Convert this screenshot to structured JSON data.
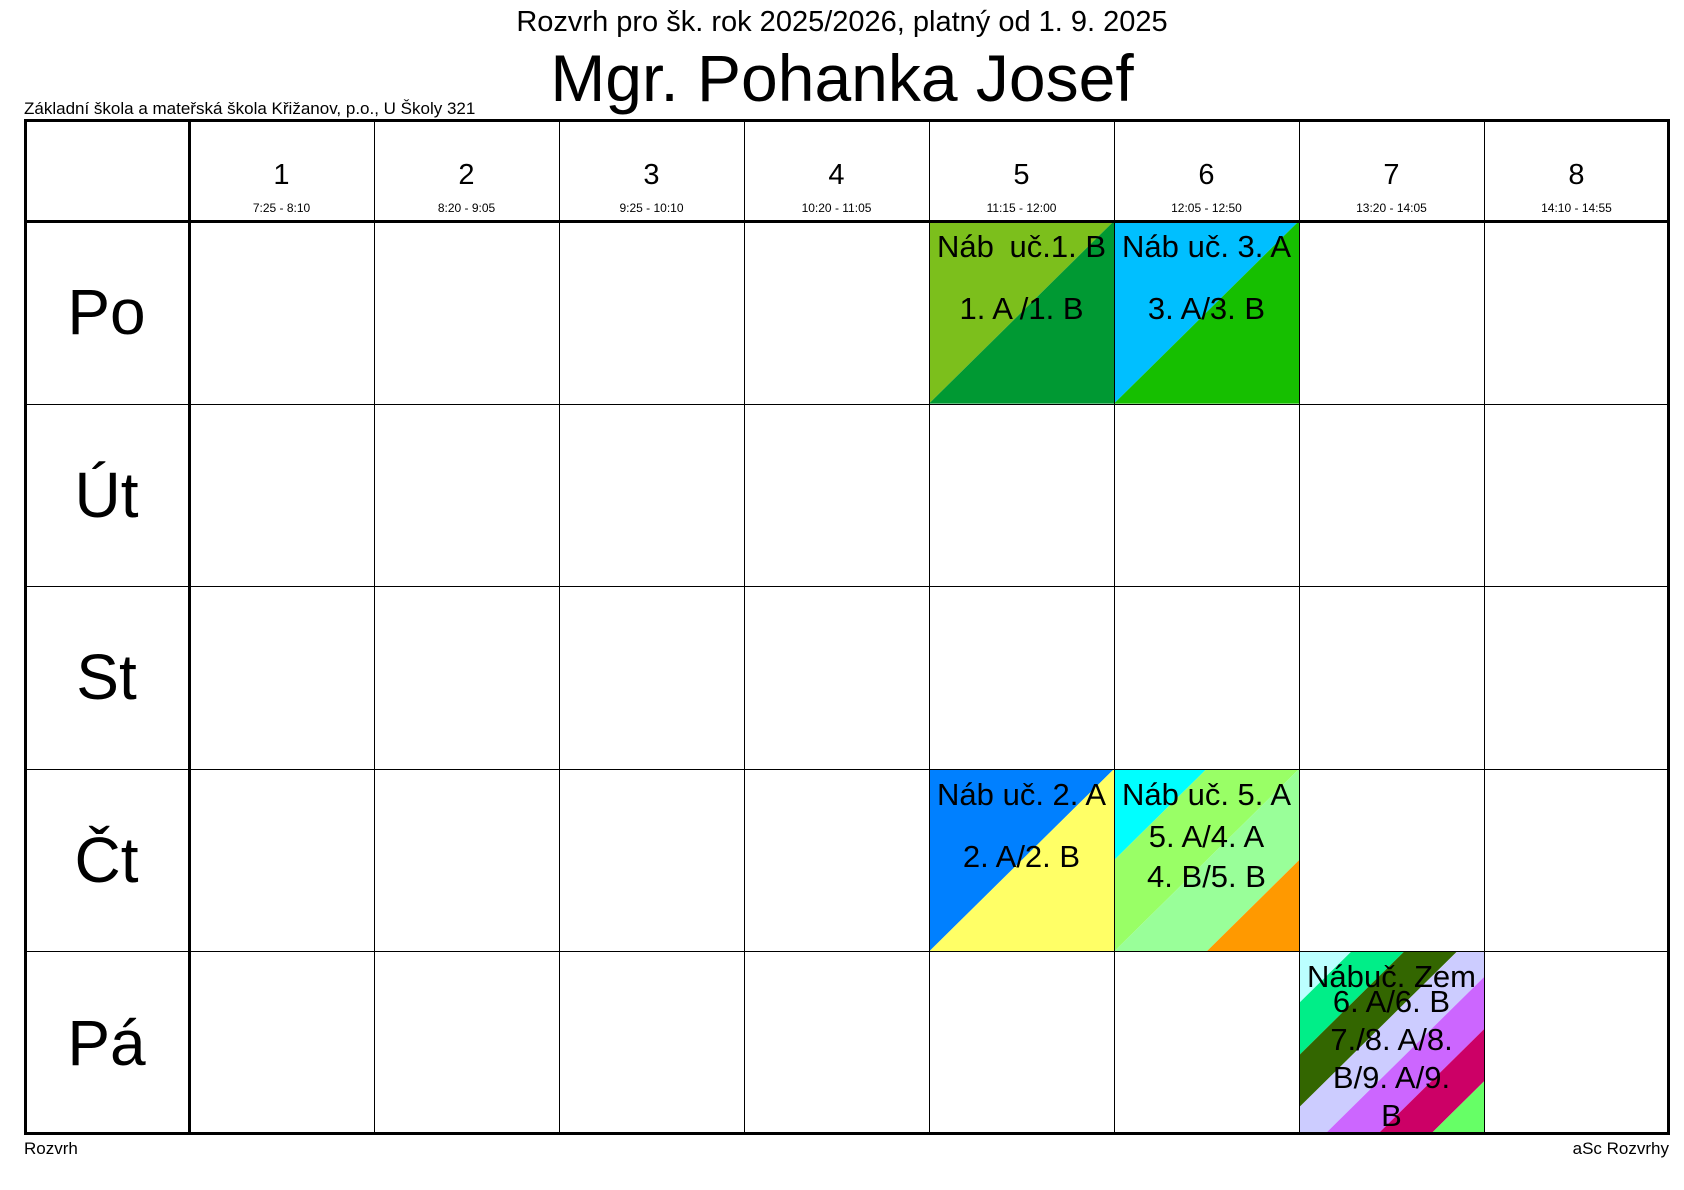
{
  "header": {
    "subtitle": "Rozvrh pro šk. rok 2025/2026, platný od 1. 9. 2025",
    "title": "Mgr. Pohanka Josef",
    "school": "Základní škola a mateřská škola Křižanov, p.o., U Školy 321"
  },
  "footer": {
    "left": "Rozvrh",
    "right": "aSc Rozvrhy"
  },
  "periods": [
    {
      "num": "1",
      "time": "7:25 - 8:10"
    },
    {
      "num": "2",
      "time": "8:20 - 9:05"
    },
    {
      "num": "3",
      "time": "9:25 - 10:10"
    },
    {
      "num": "4",
      "time": "10:20 - 11:05"
    },
    {
      "num": "5",
      "time": "11:15 - 12:00"
    },
    {
      "num": "6",
      "time": "12:05 - 12:50"
    },
    {
      "num": "7",
      "time": "13:20 - 14:05"
    },
    {
      "num": "8",
      "time": "14:10 - 14:55"
    }
  ],
  "days": [
    "Po",
    "Út",
    "St",
    "Čt",
    "Pá"
  ],
  "lessons": [
    {
      "day": 0,
      "period": 4,
      "subject": "Náb",
      "teacher": "uč.1. B",
      "classes": "1. A  /1. B",
      "colors": [
        "#7cbf1c",
        "#009933"
      ]
    },
    {
      "day": 0,
      "period": 5,
      "subject": "Náb",
      "teacher": "uč. 3. A",
      "classes": "3. A/3. B",
      "colors": [
        "#00bfff",
        "#16bf00"
      ]
    },
    {
      "day": 3,
      "period": 4,
      "subject": "Náb",
      "teacher": "uč. 2. A",
      "classes": "2. A/2. B",
      "colors": [
        "#0080ff",
        "#ffff66"
      ]
    },
    {
      "day": 3,
      "period": 5,
      "subject": "Náb",
      "teacher": "uč. 5. A",
      "classes": "5. A/4. A\n4. B/5. B",
      "colors": [
        "#00ffff",
        "#99ff66",
        "#99ff99",
        "#ff9900"
      ]
    },
    {
      "day": 4,
      "period": 6,
      "subject": "Náb",
      "teacher": "uč. Zem",
      "classes": "6. A/6. B\n7./8. A/8.\nB/9. A/9.\nB",
      "colors": [
        "#bbffff",
        "#00ee88",
        "#336600",
        "#ccccff",
        "#cc66ff",
        "#cc0066",
        "#66ff66"
      ]
    }
  ]
}
